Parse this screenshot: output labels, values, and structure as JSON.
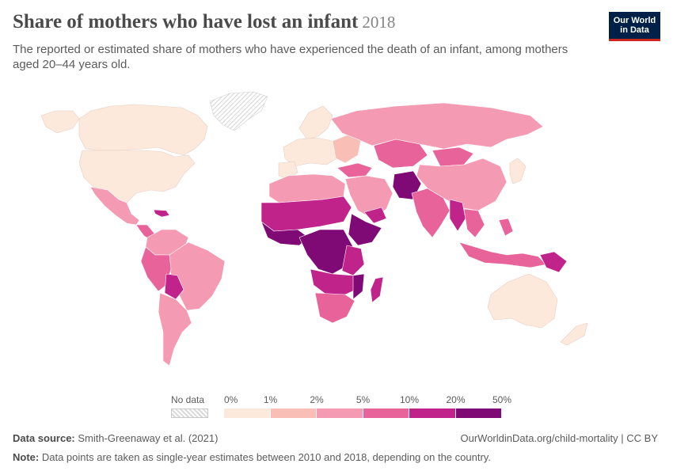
{
  "header": {
    "title": "Share of mothers who have lost an infant",
    "year": "2018",
    "subtitle": "The reported or estimated share of mothers who have experienced the death of an infant, among mothers aged 20–44 years old."
  },
  "logo": {
    "line1": "Our World",
    "line2": "in Data"
  },
  "legend": {
    "no_data_label": "No data",
    "ticks": [
      "0%",
      "1%",
      "2%",
      "5%",
      "10%",
      "20%",
      "50%"
    ],
    "colors": [
      "#fde8dc",
      "#f9bfb6",
      "#f59ab3",
      "#e8639a",
      "#c0238a",
      "#7f0a76"
    ]
  },
  "chart_data": {
    "type": "choropleth",
    "bins": [
      "0–1%",
      "1–2%",
      "2–5%",
      "5–10%",
      "10–20%",
      "20–50%"
    ]
  },
  "footer": {
    "source_label": "Data source:",
    "source_text": "Smith-Greenaway et al. (2021)",
    "url": "OurWorldinData.org/child-mortality | CC BY",
    "note_label": "Note:",
    "note_text": "Data points are taken as single-year estimates between 2010 and 2018, depending on the country."
  }
}
